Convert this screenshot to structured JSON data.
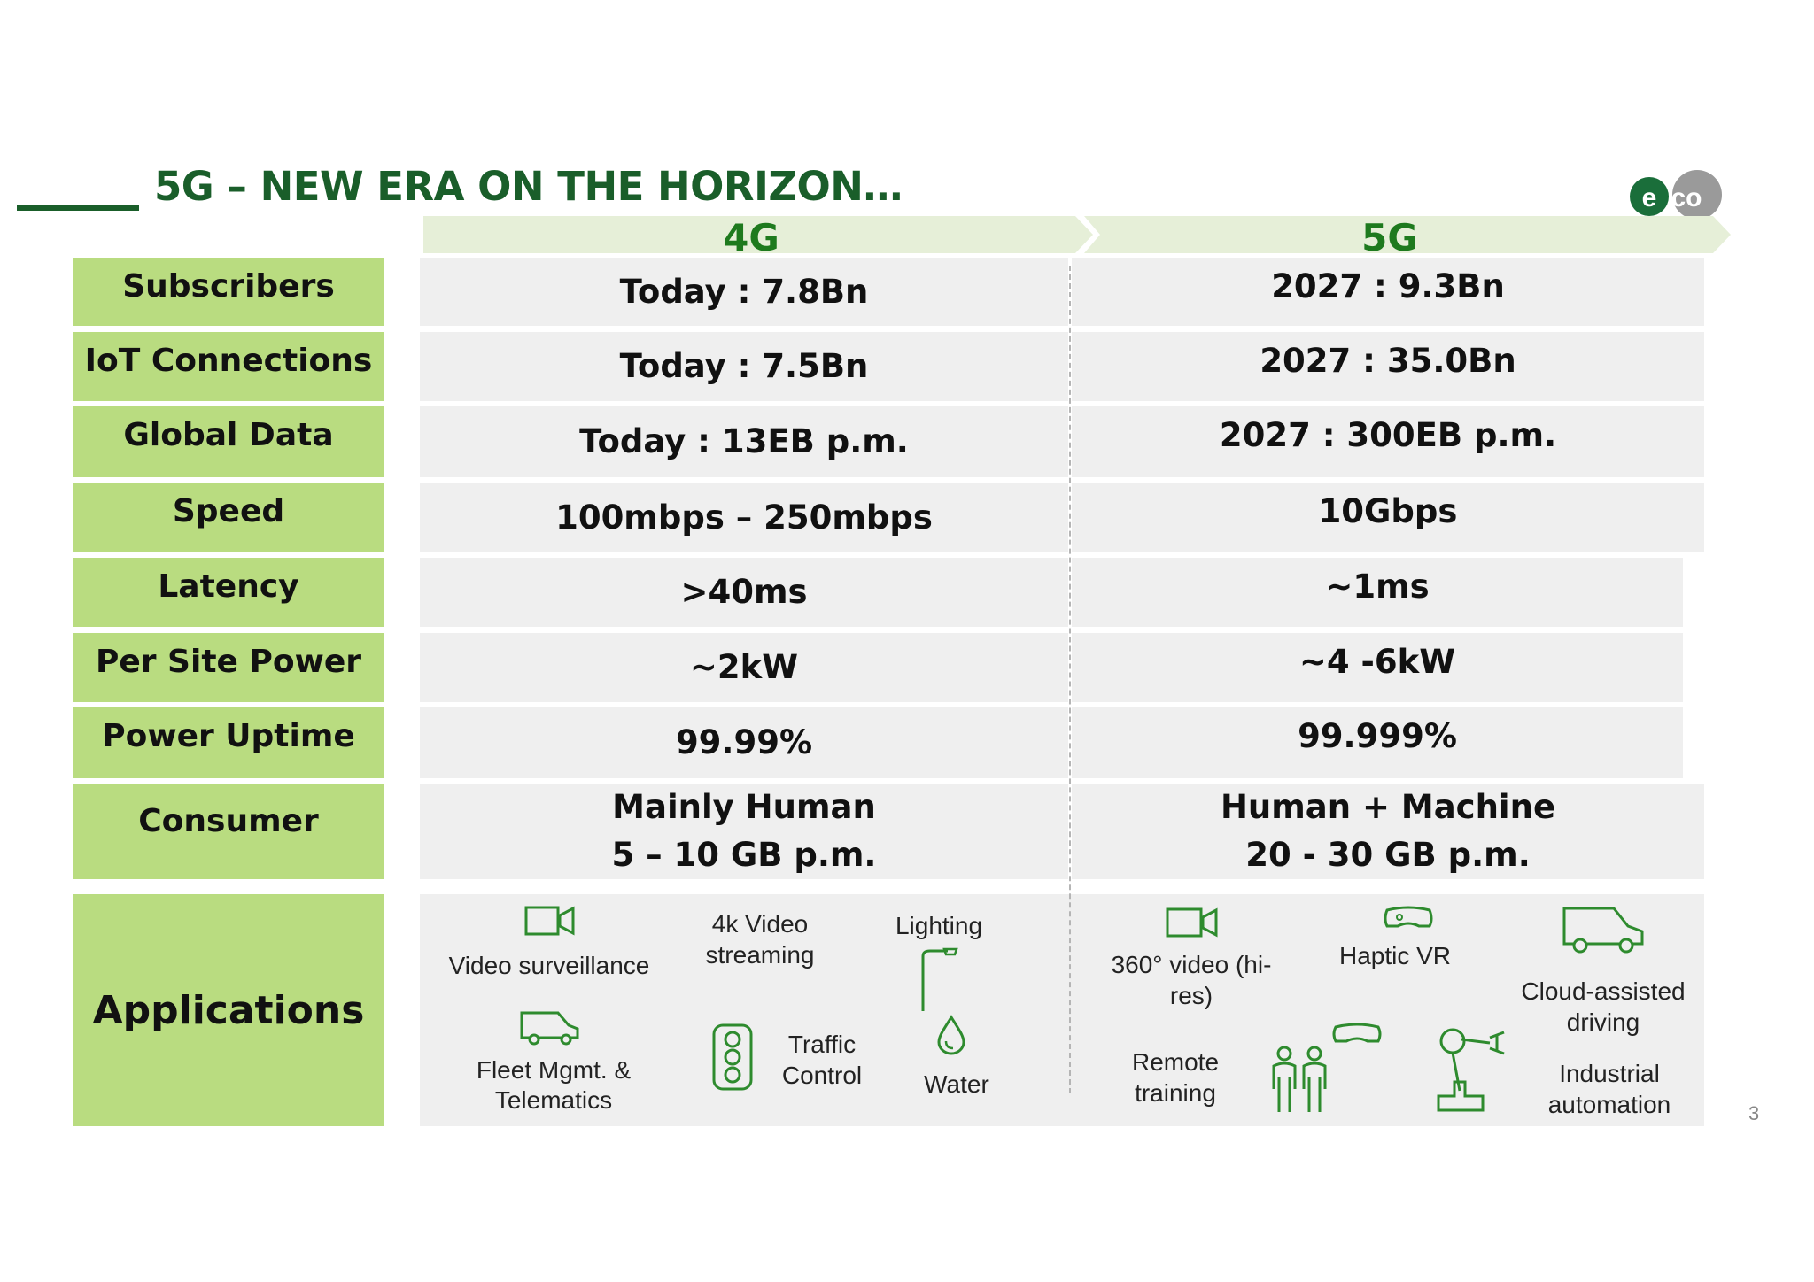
{
  "slide": {
    "title": "5G – NEW ERA ON THE HORIZON…",
    "page_number": "3",
    "logo_text": "eco"
  },
  "columns": {
    "left": "4G",
    "right": "5G"
  },
  "rows": [
    {
      "label": "Subscribers",
      "g4": "Today : 7.8Bn",
      "g5": "2027 : 9.3Bn"
    },
    {
      "label": "IoT Connections",
      "g4": "Today : 7.5Bn",
      "g5": "2027 : 35.0Bn"
    },
    {
      "label": "Global Data",
      "g4": "Today : 13EB p.m.",
      "g5": "2027 : 300EB p.m."
    },
    {
      "label": "Speed",
      "g4": "100mbps – 250mbps",
      "g5": "10Gbps"
    },
    {
      "label": "Latency",
      "g4": ">40ms",
      "g5": "~1ms"
    },
    {
      "label": "Per Site Power",
      "g4": "~2kW",
      "g5": "~4 -6kW"
    },
    {
      "label": "Power Uptime",
      "g4": "99.99%",
      "g5": "99.999%"
    },
    {
      "label": "Consumer",
      "g4_line1": "Mainly Human",
      "g4_line2": "5 – 10 GB p.m.",
      "g5_line1": "Human + Machine",
      "g5_line2": "20 - 30 GB p.m."
    }
  ],
  "applications": {
    "label": "Applications",
    "g4": {
      "video_surveillance": "Video surveillance",
      "video_streaming_1": "4k Video",
      "video_streaming_2": "streaming",
      "lighting": "Lighting",
      "fleet_1": "Fleet Mgmt. &",
      "fleet_2": "Telematics",
      "traffic_1": "Traffic",
      "traffic_2": "Control",
      "water": "Water"
    },
    "g5": {
      "video360_1": "360° video (hi-",
      "video360_2": "res)",
      "haptic_vr": "Haptic VR",
      "cloud_1": "Cloud-assisted",
      "cloud_2": "driving",
      "remote_1": "Remote",
      "remote_2": "training",
      "industrial_1": "Industrial",
      "industrial_2": "automation"
    }
  },
  "colors": {
    "title_green": "#1a5e2a",
    "label_green": "#b9dc80",
    "header_green": "#1e7a1e",
    "chevron_fill": "#e6efd8",
    "cell_gray": "#efefef",
    "icon_green": "#2e8b2e"
  }
}
